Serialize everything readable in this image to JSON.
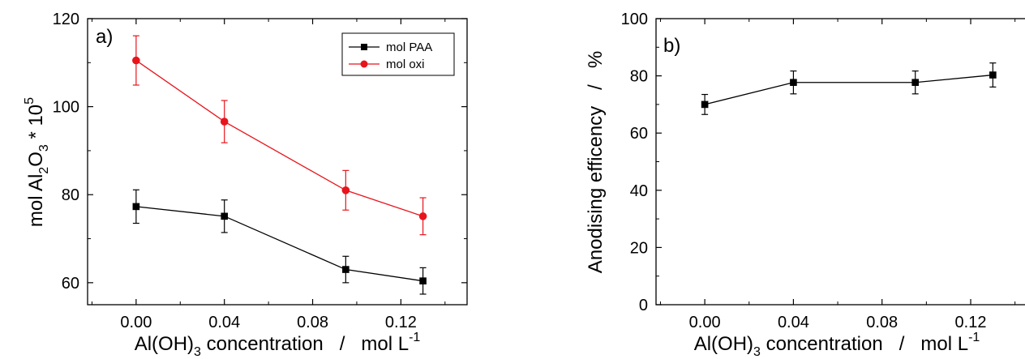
{
  "chart_data": [
    {
      "type": "line",
      "panel_label": "a)",
      "x": [
        0.0,
        0.04,
        0.095,
        0.13
      ],
      "xticks": [
        "0.00",
        "0.04",
        "0.08",
        "0.12"
      ],
      "xtick_values": [
        0.0,
        0.04,
        0.08,
        0.12
      ],
      "xlim": [
        -0.022,
        0.15
      ],
      "ylim": [
        55,
        120
      ],
      "yticks": [
        "60",
        "80",
        "100",
        "120"
      ],
      "ytick_values": [
        60,
        80,
        100,
        120
      ],
      "xlabel": {
        "main": "Al(OH)",
        "sub": "3",
        "rest": " concentration   /   mol L",
        "sup": "-1"
      },
      "ylabel": {
        "p1": "mol Al",
        "s1": "2",
        "p2": "O",
        "s2": "3",
        "p3": " * 10",
        "sup": "5"
      },
      "legend": {
        "placement": "top-right"
      },
      "series": [
        {
          "name": "mol PAA",
          "color": "#000000",
          "marker": "square",
          "values": [
            77.3,
            75.1,
            63.0,
            60.4
          ],
          "errors": [
            3.8,
            3.7,
            3.0,
            3.0
          ]
        },
        {
          "name": "mol oxi",
          "color": "#e8141c",
          "marker": "circle",
          "values": [
            110.5,
            96.6,
            81.0,
            75.1
          ],
          "errors": [
            5.6,
            4.8,
            4.5,
            4.2
          ]
        }
      ]
    },
    {
      "type": "line",
      "panel_label": "b)",
      "x": [
        0.0,
        0.04,
        0.095,
        0.13
      ],
      "xticks": [
        "0.00",
        "0.04",
        "0.08",
        "0.12"
      ],
      "xtick_values": [
        0.0,
        0.04,
        0.08,
        0.12
      ],
      "xlim": [
        -0.022,
        0.15
      ],
      "ylim": [
        0,
        100
      ],
      "yticks": [
        "0",
        "20",
        "40",
        "60",
        "80",
        "100"
      ],
      "ytick_values": [
        0,
        20,
        40,
        60,
        80,
        100
      ],
      "xlabel": {
        "main": "Al(OH)",
        "sub": "3",
        "rest": " concentration   /   mol L",
        "sup": "-1"
      },
      "ylabel": {
        "text": "Anodising efficency   /   %"
      },
      "series": [
        {
          "name": "",
          "color": "#000000",
          "marker": "square",
          "values": [
            70.0,
            77.7,
            77.7,
            80.3
          ],
          "errors": [
            3.5,
            4.0,
            4.0,
            4.2
          ]
        }
      ]
    }
  ]
}
